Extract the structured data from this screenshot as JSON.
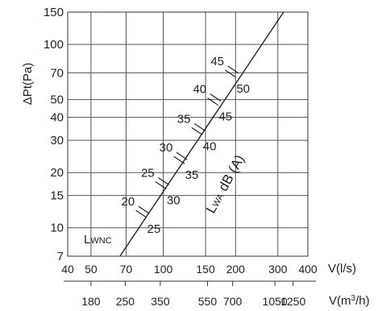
{
  "chart_data": {
    "type": "line",
    "scale": "log-log",
    "ylabel": "ΔPt(Pa)",
    "xlabel": "V(l/s)",
    "x2label": "V(m³/h)",
    "ylim": [
      7,
      150
    ],
    "xlim": [
      40,
      400
    ],
    "yticks": [
      {
        "value": 7,
        "label": "7"
      },
      {
        "value": 10,
        "label": "10"
      },
      {
        "value": 15,
        "label": "15"
      },
      {
        "value": 20,
        "label": "20"
      },
      {
        "value": 30,
        "label": "30"
      },
      {
        "value": 40,
        "label": "40"
      },
      {
        "value": 50,
        "label": "50"
      },
      {
        "value": 70,
        "label": "70"
      },
      {
        "value": 100,
        "label": "100"
      },
      {
        "value": 150,
        "label": "150"
      }
    ],
    "xticks": [
      {
        "value": 40,
        "label": "40"
      },
      {
        "value": 50,
        "label": "50"
      },
      {
        "value": 70,
        "label": "70"
      },
      {
        "value": 100,
        "label": "100"
      },
      {
        "value": 150,
        "label": "150"
      },
      {
        "value": 200,
        "label": "200"
      },
      {
        "value": 300,
        "label": "300"
      },
      {
        "value": 400,
        "label": "400"
      }
    ],
    "x2ticks": [
      {
        "value": 180,
        "label": "180"
      },
      {
        "value": 250,
        "label": "250"
      },
      {
        "value": 350,
        "label": "350"
      },
      {
        "value": 550,
        "label": "550"
      },
      {
        "value": 700,
        "label": "700"
      },
      {
        "value": 1050,
        "label": "1050"
      },
      {
        "value": 1250,
        "label": "1250"
      }
    ],
    "series": [
      {
        "points": [
          [
            66,
            7
          ],
          [
            317,
            150
          ]
        ]
      }
    ],
    "sound_marks": [
      {
        "x": 82,
        "y": 12.2,
        "lower_label": "25",
        "upper_label": "20"
      },
      {
        "x": 99,
        "y": 17.5,
        "lower_label": "30",
        "upper_label": "25"
      },
      {
        "x": 118,
        "y": 24,
        "lower_label": "35",
        "upper_label": "30"
      },
      {
        "x": 140,
        "y": 34.5,
        "lower_label": "40",
        "upper_label": "35"
      },
      {
        "x": 163,
        "y": 50,
        "lower_label": "45",
        "upper_label": "40"
      },
      {
        "x": 193,
        "y": 71,
        "lower_label": "50",
        "upper_label": "45"
      }
    ],
    "curve_label": "LWA dB (A)",
    "corner_label": "LWNC",
    "grid": true,
    "legend": "none"
  }
}
